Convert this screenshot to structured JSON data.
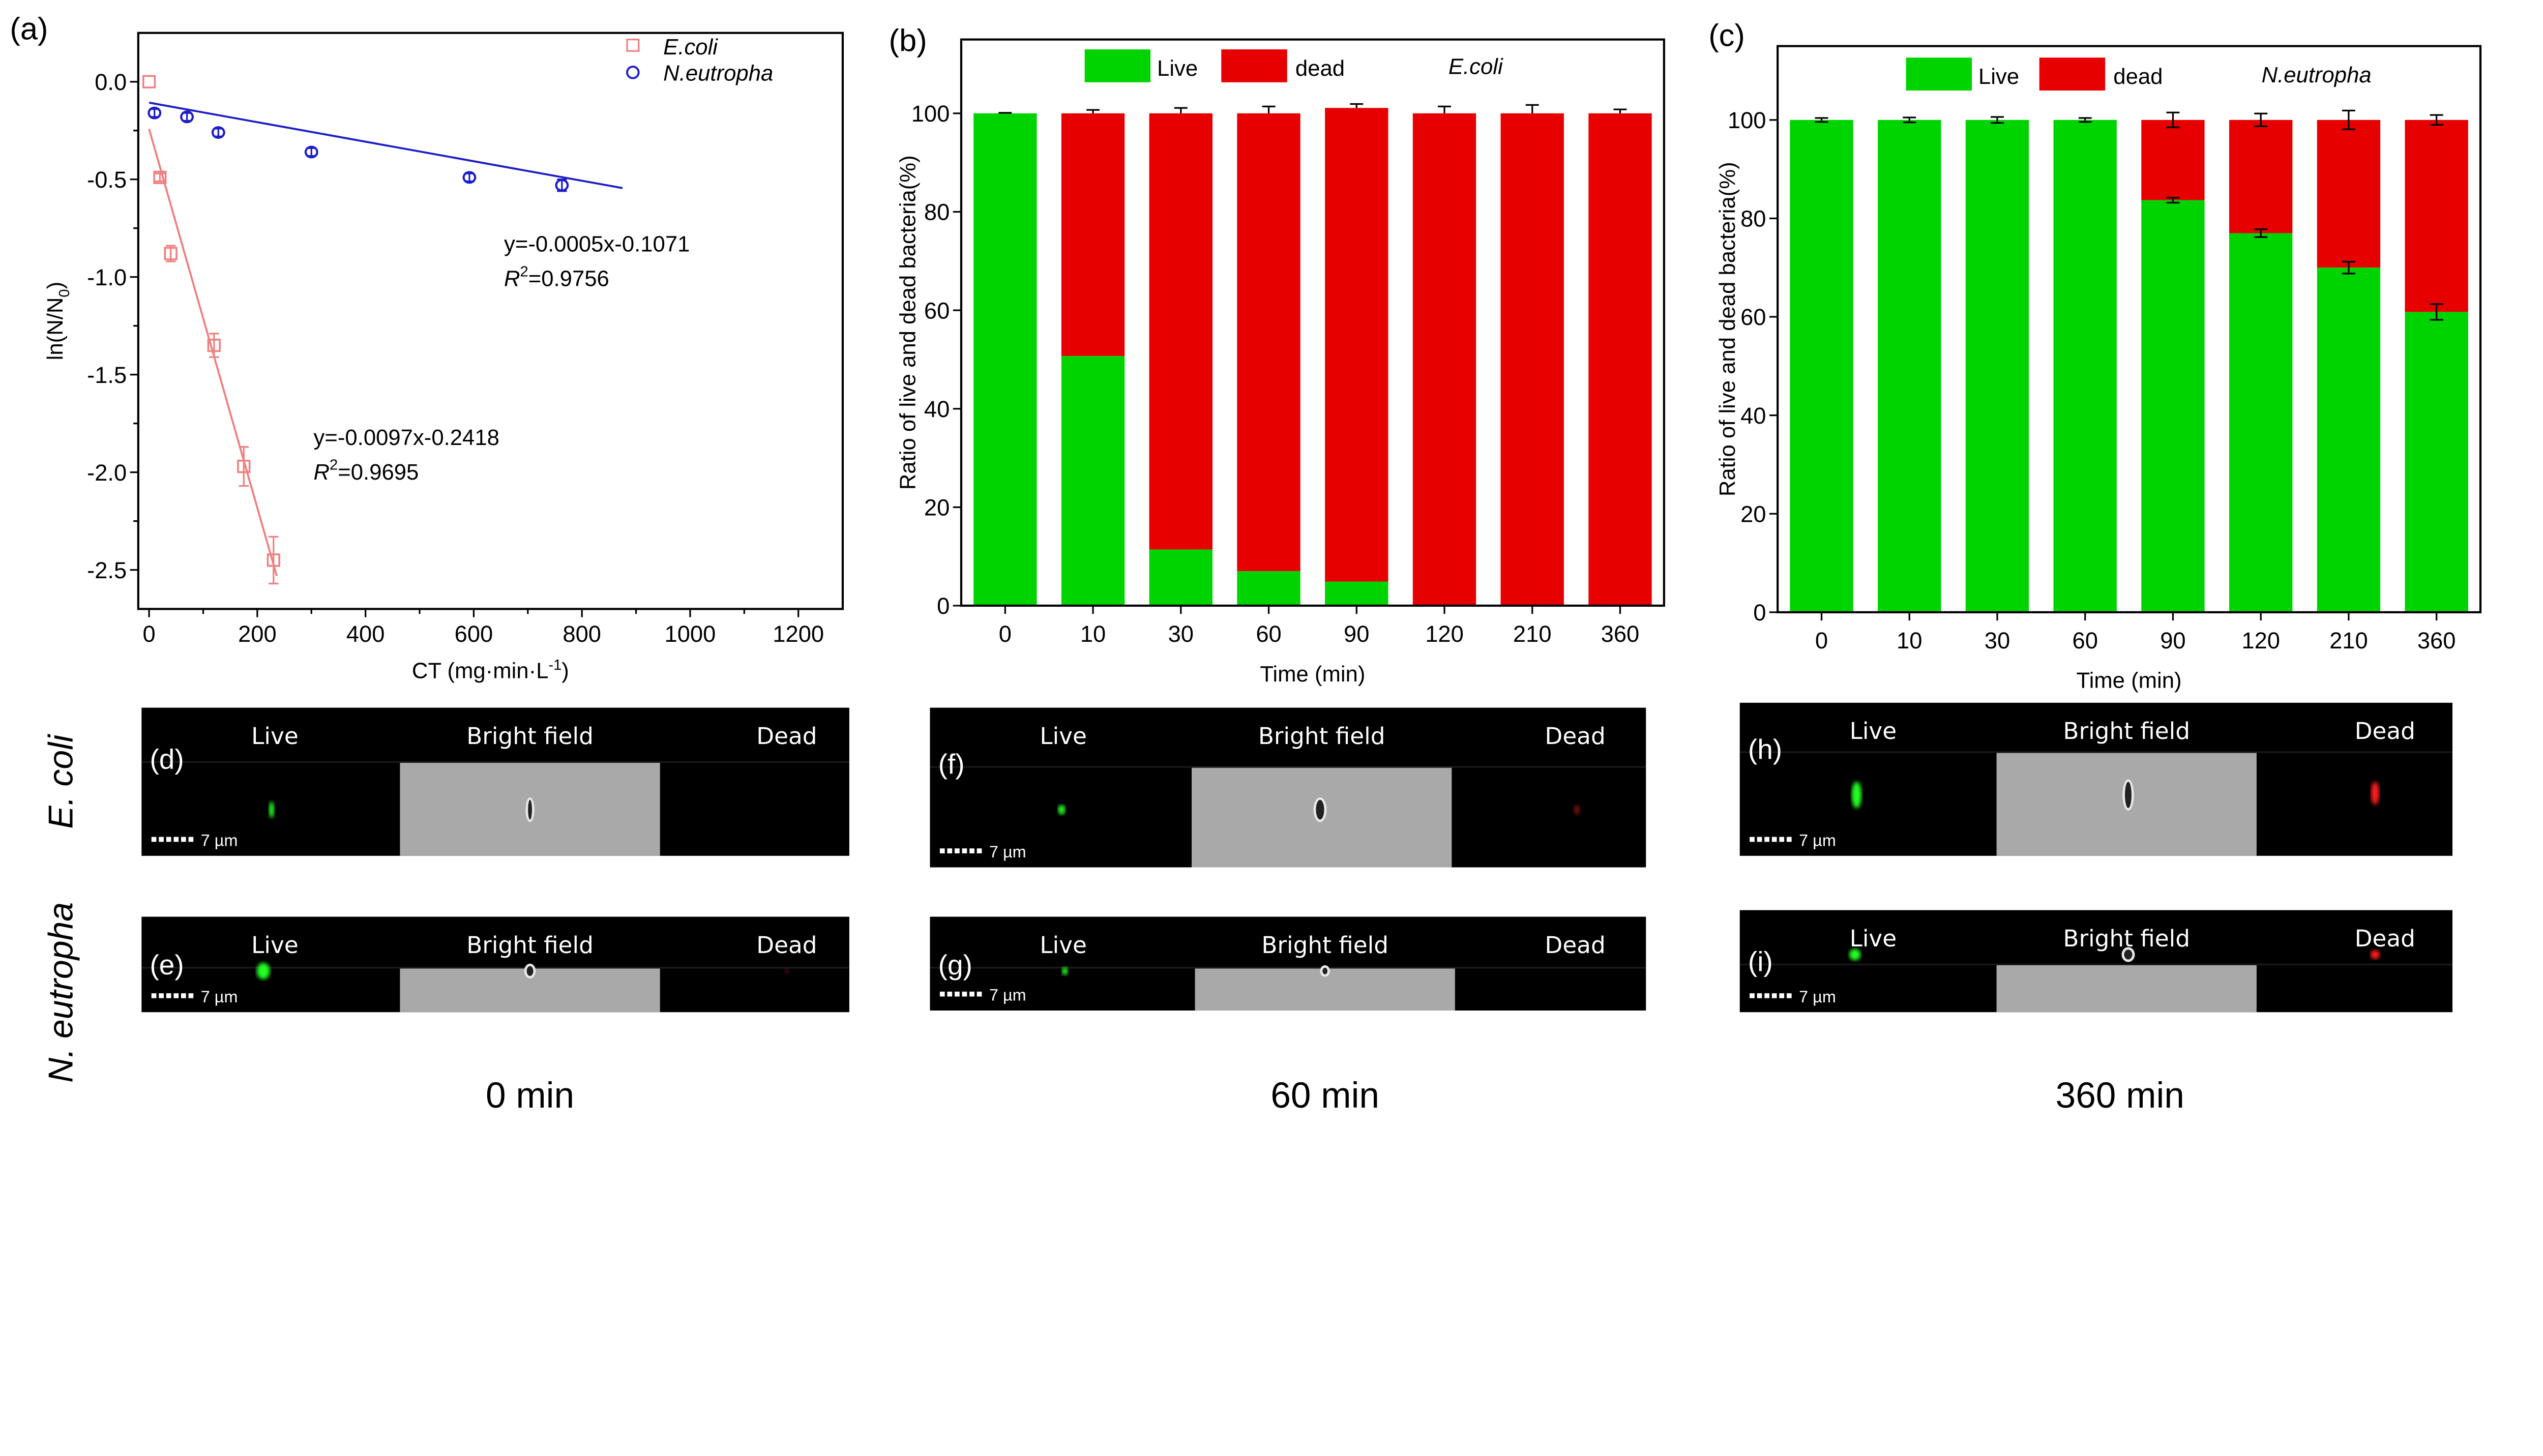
{
  "chart_data": [
    {
      "type": "scatter",
      "panel_label": "(a)",
      "xlabel": {
        "main": "CT (mg·min·L",
        "sup": "-1",
        "end": ")"
      },
      "ylabel": {
        "main": "ln(N/N",
        "sub": "0",
        "end": ")"
      },
      "xlim": [
        -20,
        1282
      ],
      "ylim": [
        -2.7,
        0.25
      ],
      "xticks": [
        0,
        200,
        400,
        600,
        800,
        1000,
        1200
      ],
      "yticks": [
        "0.0",
        "-0.5",
        "-1.0",
        "-1.5",
        "-2.0",
        "-2.5"
      ],
      "legend_position": "top-right",
      "series": [
        {
          "name": "E.coli",
          "marker": "square",
          "color": "#f07f7f",
          "x": [
            0,
            20,
            40,
            120,
            175,
            230
          ],
          "y": [
            0.0,
            -0.49,
            -0.88,
            -1.35,
            -1.97,
            -2.45
          ],
          "err": [
            0.0,
            0.02,
            0.04,
            0.06,
            0.1,
            0.12
          ],
          "fit": {
            "slope": -0.0097,
            "intercept": -0.2418,
            "x_range": [
              0,
              236
            ]
          },
          "equation": "y=-0.0097x-0.2418",
          "r2_symbol": "R",
          "r2_power": "2",
          "r2_value": "=0.9695",
          "annotation_at": [
            304,
            -1.86
          ]
        },
        {
          "name": "N.eutropha",
          "marker": "circle",
          "color": "#1c1cc8",
          "x": [
            10,
            70,
            128,
            300,
            592,
            763
          ],
          "y": [
            -0.16,
            -0.18,
            -0.26,
            -0.36,
            -0.49,
            -0.53
          ],
          "err": [
            0.02,
            0.02,
            0.02,
            0.02,
            0.02,
            0.03
          ],
          "fit": {
            "slope": -0.0005,
            "intercept": -0.1071,
            "x_range": [
              0,
              875
            ]
          },
          "equation": "y=-0.0005x-0.1071",
          "r2_symbol": "R",
          "r2_power": "2",
          "r2_value": "=0.9756",
          "annotation_at": [
            656,
            -0.87
          ]
        }
      ]
    },
    {
      "type": "bar",
      "stacked": true,
      "panel_label": "(b)",
      "title": "E.coli",
      "categories": [
        "0",
        "10",
        "30",
        "60",
        "90",
        "120",
        "210",
        "360"
      ],
      "xlabel": "Time (min)",
      "ylabel": "Ratio of live and dead bacteria(%)",
      "ylim": [
        0,
        115
      ],
      "yticks": [
        0,
        20,
        40,
        60,
        80,
        100
      ],
      "error_style": "up",
      "series": [
        {
          "name": "Live",
          "color": "#00d400",
          "values": [
            100,
            50.7,
            11.4,
            7.0,
            4.9,
            0,
            0,
            0
          ]
        },
        {
          "name": "dead",
          "color": "#e60000",
          "values": [
            0,
            49.3,
            88.6,
            93.0,
            96.2,
            100,
            100,
            100
          ]
        }
      ],
      "total_err": [
        0.1,
        0.7,
        1.1,
        1.4,
        0.8,
        1.4,
        1.7,
        0.8
      ],
      "live_err": [
        0,
        0,
        0,
        0,
        0,
        0,
        0,
        0
      ]
    },
    {
      "type": "bar",
      "stacked": true,
      "panel_label": "(c)",
      "title": "N.eutropha",
      "categories": [
        "0",
        "10",
        "30",
        "60",
        "90",
        "120",
        "210",
        "360"
      ],
      "xlabel": "Time (min)",
      "ylabel": "Ratio of live and dead bacteria(%)",
      "ylim": [
        0,
        115
      ],
      "yticks": [
        0,
        20,
        40,
        60,
        80,
        100
      ],
      "error_style": "both",
      "series": [
        {
          "name": "Live",
          "color": "#00d400",
          "values": [
            100,
            100,
            100,
            100,
            83.7,
            77.0,
            70.0,
            61.0
          ]
        },
        {
          "name": "dead",
          "color": "#e60000",
          "values": [
            0,
            0,
            0,
            0,
            16.3,
            23.0,
            30.0,
            39.0
          ]
        }
      ],
      "total_err": [
        0.4,
        0.5,
        0.6,
        0.4,
        1.5,
        1.3,
        1.9,
        1.0
      ],
      "live_err": [
        0,
        0,
        0,
        0,
        0.5,
        0.8,
        1.2,
        1.6
      ]
    }
  ],
  "micrographs": {
    "columns": [
      "Live",
      "Bright field",
      "Dead"
    ],
    "scale_bar": "7 µm",
    "row_labels": [
      "E. coli",
      "N. eutropha"
    ],
    "time_labels": [
      "0 min",
      "60 min",
      "360 min"
    ],
    "panels": [
      "(d)",
      "(e)",
      "(f)",
      "(g)",
      "(h)",
      "(i)"
    ]
  }
}
